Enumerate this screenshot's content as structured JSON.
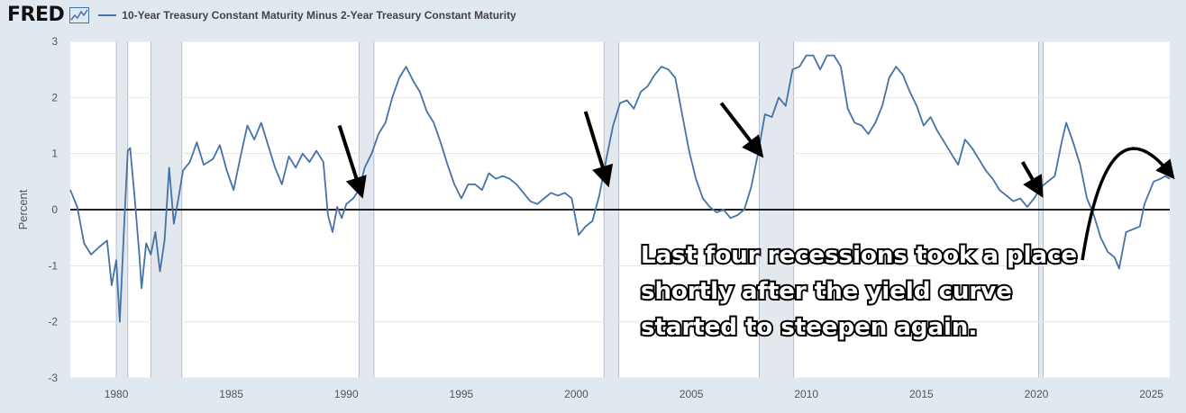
{
  "header": {
    "logo": "FRED",
    "logo_icon": "line-chart-icon",
    "series_title": "10-Year Treasury Constant Maturity Minus 2-Year Treasury Constant Maturity",
    "series_color": "#4572a7"
  },
  "chart_data": {
    "type": "line",
    "title": "",
    "ylabel": "Percent",
    "xlabel": "",
    "xlim": [
      1978.0,
      2025.8
    ],
    "ylim": [
      -3,
      3
    ],
    "x_ticks": [
      1980,
      1985,
      1990,
      1995,
      2000,
      2005,
      2010,
      2015,
      2020,
      2025
    ],
    "y_ticks": [
      -3,
      -2,
      -1,
      0,
      1,
      2,
      3
    ],
    "grid": true,
    "zero_line": true,
    "recessions": [
      [
        1980.0,
        1980.5
      ],
      [
        1981.5,
        1982.85
      ],
      [
        1990.55,
        1991.2
      ],
      [
        2001.2,
        2001.85
      ],
      [
        2007.95,
        2009.45
      ],
      [
        2020.1,
        2020.3
      ]
    ],
    "series": [
      {
        "name": "10-Year Treasury Constant Maturity Minus 2-Year Treasury Constant Maturity",
        "color": "#4572a7",
        "points": [
          [
            1978.0,
            0.35
          ],
          [
            1978.3,
            0.05
          ],
          [
            1978.6,
            -0.6
          ],
          [
            1978.9,
            -0.8
          ],
          [
            1979.3,
            -0.65
          ],
          [
            1979.6,
            -0.55
          ],
          [
            1979.8,
            -1.35
          ],
          [
            1980.0,
            -0.9
          ],
          [
            1980.15,
            -2.0
          ],
          [
            1980.35,
            -0.2
          ],
          [
            1980.5,
            1.05
          ],
          [
            1980.6,
            1.1
          ],
          [
            1980.8,
            0.2
          ],
          [
            1981.0,
            -0.8
          ],
          [
            1981.1,
            -1.4
          ],
          [
            1981.3,
            -0.6
          ],
          [
            1981.5,
            -0.8
          ],
          [
            1981.7,
            -0.4
          ],
          [
            1981.9,
            -1.1
          ],
          [
            1982.1,
            -0.55
          ],
          [
            1982.3,
            0.75
          ],
          [
            1982.5,
            -0.25
          ],
          [
            1982.7,
            0.2
          ],
          [
            1982.9,
            0.7
          ],
          [
            1983.2,
            0.85
          ],
          [
            1983.5,
            1.2
          ],
          [
            1983.8,
            0.8
          ],
          [
            1984.2,
            0.9
          ],
          [
            1984.5,
            1.15
          ],
          [
            1984.8,
            0.7
          ],
          [
            1985.1,
            0.35
          ],
          [
            1985.4,
            0.95
          ],
          [
            1985.7,
            1.5
          ],
          [
            1986.0,
            1.25
          ],
          [
            1986.3,
            1.55
          ],
          [
            1986.6,
            1.15
          ],
          [
            1986.9,
            0.75
          ],
          [
            1987.2,
            0.45
          ],
          [
            1987.5,
            0.95
          ],
          [
            1987.8,
            0.75
          ],
          [
            1988.1,
            1.0
          ],
          [
            1988.4,
            0.85
          ],
          [
            1988.7,
            1.05
          ],
          [
            1989.0,
            0.85
          ],
          [
            1989.2,
            -0.1
          ],
          [
            1989.4,
            -0.4
          ],
          [
            1989.6,
            0.05
          ],
          [
            1989.8,
            -0.15
          ],
          [
            1990.0,
            0.1
          ],
          [
            1990.3,
            0.2
          ],
          [
            1990.55,
            0.35
          ],
          [
            1990.8,
            0.75
          ],
          [
            1991.1,
            1.0
          ],
          [
            1991.4,
            1.35
          ],
          [
            1991.7,
            1.55
          ],
          [
            1992.0,
            2.0
          ],
          [
            1992.3,
            2.35
          ],
          [
            1992.6,
            2.55
          ],
          [
            1992.9,
            2.3
          ],
          [
            1993.2,
            2.1
          ],
          [
            1993.5,
            1.75
          ],
          [
            1993.8,
            1.55
          ],
          [
            1994.1,
            1.2
          ],
          [
            1994.4,
            0.8
          ],
          [
            1994.7,
            0.45
          ],
          [
            1995.0,
            0.2
          ],
          [
            1995.3,
            0.45
          ],
          [
            1995.6,
            0.45
          ],
          [
            1995.9,
            0.35
          ],
          [
            1996.2,
            0.65
          ],
          [
            1996.5,
            0.55
          ],
          [
            1996.8,
            0.6
          ],
          [
            1997.1,
            0.55
          ],
          [
            1997.4,
            0.45
          ],
          [
            1997.7,
            0.3
          ],
          [
            1998.0,
            0.15
          ],
          [
            1998.3,
            0.1
          ],
          [
            1998.6,
            0.2
          ],
          [
            1998.9,
            0.3
          ],
          [
            1999.2,
            0.25
          ],
          [
            1999.5,
            0.3
          ],
          [
            1999.8,
            0.2
          ],
          [
            2000.1,
            -0.45
          ],
          [
            2000.4,
            -0.3
          ],
          [
            2000.7,
            -0.2
          ],
          [
            2001.0,
            0.25
          ],
          [
            2001.3,
            0.9
          ],
          [
            2001.6,
            1.5
          ],
          [
            2001.9,
            1.9
          ],
          [
            2002.2,
            1.95
          ],
          [
            2002.5,
            1.8
          ],
          [
            2002.8,
            2.1
          ],
          [
            2003.1,
            2.2
          ],
          [
            2003.4,
            2.4
          ],
          [
            2003.7,
            2.55
          ],
          [
            2004.0,
            2.5
          ],
          [
            2004.3,
            2.35
          ],
          [
            2004.6,
            1.7
          ],
          [
            2004.9,
            1.05
          ],
          [
            2005.2,
            0.55
          ],
          [
            2005.5,
            0.2
          ],
          [
            2005.8,
            0.05
          ],
          [
            2006.1,
            -0.05
          ],
          [
            2006.4,
            0.0
          ],
          [
            2006.7,
            -0.15
          ],
          [
            2007.0,
            -0.1
          ],
          [
            2007.3,
            0.0
          ],
          [
            2007.6,
            0.4
          ],
          [
            2007.9,
            1.0
          ],
          [
            2008.2,
            1.7
          ],
          [
            2008.5,
            1.65
          ],
          [
            2008.8,
            2.0
          ],
          [
            2009.1,
            1.85
          ],
          [
            2009.4,
            2.5
          ],
          [
            2009.7,
            2.55
          ],
          [
            2010.0,
            2.75
          ],
          [
            2010.3,
            2.75
          ],
          [
            2010.6,
            2.5
          ],
          [
            2010.9,
            2.75
          ],
          [
            2011.2,
            2.75
          ],
          [
            2011.5,
            2.55
          ],
          [
            2011.8,
            1.8
          ],
          [
            2012.1,
            1.55
          ],
          [
            2012.4,
            1.5
          ],
          [
            2012.7,
            1.35
          ],
          [
            2013.0,
            1.55
          ],
          [
            2013.3,
            1.85
          ],
          [
            2013.6,
            2.35
          ],
          [
            2013.9,
            2.55
          ],
          [
            2014.2,
            2.4
          ],
          [
            2014.5,
            2.1
          ],
          [
            2014.8,
            1.85
          ],
          [
            2015.1,
            1.5
          ],
          [
            2015.4,
            1.65
          ],
          [
            2015.7,
            1.4
          ],
          [
            2016.0,
            1.2
          ],
          [
            2016.3,
            1.0
          ],
          [
            2016.6,
            0.8
          ],
          [
            2016.9,
            1.25
          ],
          [
            2017.2,
            1.1
          ],
          [
            2017.5,
            0.9
          ],
          [
            2017.8,
            0.7
          ],
          [
            2018.1,
            0.55
          ],
          [
            2018.4,
            0.35
          ],
          [
            2018.7,
            0.25
          ],
          [
            2019.0,
            0.15
          ],
          [
            2019.3,
            0.2
          ],
          [
            2019.6,
            0.05
          ],
          [
            2019.9,
            0.2
          ],
          [
            2020.2,
            0.4
          ],
          [
            2020.5,
            0.5
          ],
          [
            2020.8,
            0.6
          ],
          [
            2021.1,
            1.2
          ],
          [
            2021.3,
            1.55
          ],
          [
            2021.6,
            1.2
          ],
          [
            2021.9,
            0.8
          ],
          [
            2022.2,
            0.2
          ],
          [
            2022.5,
            -0.1
          ],
          [
            2022.8,
            -0.5
          ],
          [
            2023.1,
            -0.75
          ],
          [
            2023.4,
            -0.85
          ],
          [
            2023.6,
            -1.05
          ],
          [
            2023.9,
            -0.4
          ],
          [
            2024.2,
            -0.35
          ],
          [
            2024.5,
            -0.3
          ],
          [
            2024.7,
            0.1
          ],
          [
            2024.9,
            0.3
          ],
          [
            2025.1,
            0.5
          ],
          [
            2025.4,
            0.55
          ],
          [
            2025.6,
            0.6
          ],
          [
            2025.8,
            0.55
          ]
        ]
      }
    ],
    "annotation": "Last four recessions took a place shortly after the yield curve started to steepen again.",
    "annotation_lines": [
      "Last four recessions took a place",
      "shortly after the yield curve",
      "started to steepen again."
    ]
  }
}
